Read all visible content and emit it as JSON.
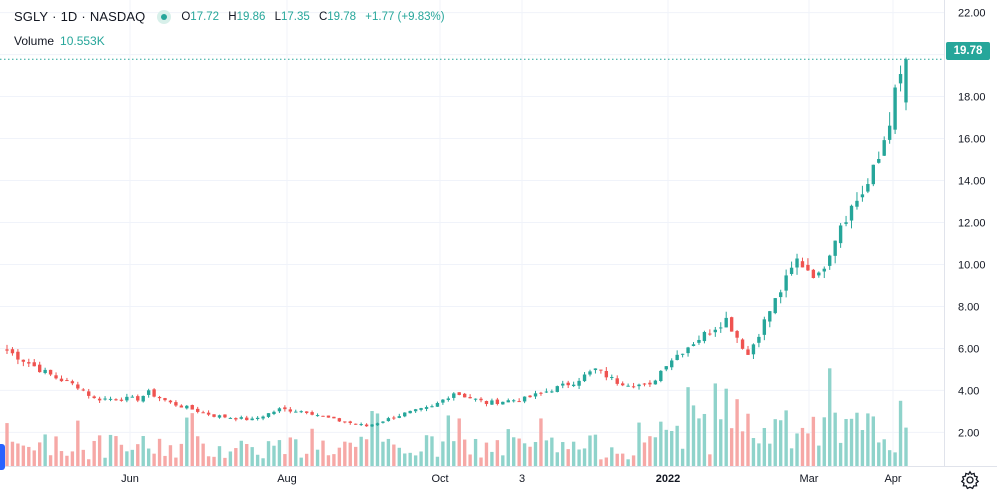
{
  "legend": {
    "symbol": "SGLY",
    "interval": "1D",
    "exchange": "NASDAQ",
    "separator": "·",
    "open_label": "O",
    "open": "17.72",
    "high_label": "H",
    "high": "19.86",
    "low_label": "L",
    "low": "17.35",
    "close_label": "C",
    "close": "19.78",
    "change": "+1.77 (+9.83%)"
  },
  "volume": {
    "label": "Volume",
    "value": "10.553K"
  },
  "last_price": "19.78",
  "colors": {
    "up": "#26a69a",
    "down": "#ef5350",
    "vol_up": "#8fd3cb",
    "vol_down": "#f6a8a6",
    "grid": "#f0f3fa",
    "axis_text": "#131722"
  },
  "chart_data": {
    "type": "candlestick",
    "y_axis": {
      "ticks": [
        "2.00",
        "4.00",
        "6.00",
        "8.00",
        "10.00",
        "12.00",
        "14.00",
        "16.00",
        "18.00",
        "20.00",
        "22.00"
      ],
      "range": [
        0.4,
        22.6
      ],
      "position": "right"
    },
    "x_axis": {
      "ticks": [
        "Jun",
        "Aug",
        "Oct",
        "3",
        "2022",
        "Mar",
        "Apr"
      ]
    },
    "price_path": [
      [
        0,
        5.9
      ],
      [
        6,
        5.0
      ],
      [
        9,
        4.6
      ],
      [
        13,
        4.2
      ],
      [
        16,
        3.6
      ],
      [
        24,
        3.6
      ],
      [
        26,
        3.9
      ],
      [
        30,
        3.4
      ],
      [
        38,
        2.8
      ],
      [
        45,
        2.6
      ],
      [
        50,
        3.1
      ],
      [
        55,
        3.0
      ],
      [
        60,
        2.6
      ],
      [
        66,
        2.3
      ],
      [
        73,
        2.9
      ],
      [
        78,
        3.2
      ],
      [
        82,
        3.9
      ],
      [
        88,
        3.4
      ],
      [
        95,
        3.6
      ],
      [
        104,
        4.4
      ],
      [
        108,
        5.0
      ],
      [
        112,
        4.4
      ],
      [
        118,
        4.2
      ],
      [
        121,
        5.3
      ],
      [
        126,
        6.3
      ],
      [
        132,
        7.4
      ],
      [
        136,
        5.7
      ],
      [
        140,
        7.8
      ],
      [
        145,
        10.2
      ],
      [
        149,
        9.4
      ],
      [
        153,
        12.0
      ],
      [
        158,
        13.8
      ],
      [
        160,
        15.0
      ],
      [
        163,
        18.0
      ],
      [
        165,
        19.78
      ]
    ]
  },
  "settings_icon": "gear-icon"
}
